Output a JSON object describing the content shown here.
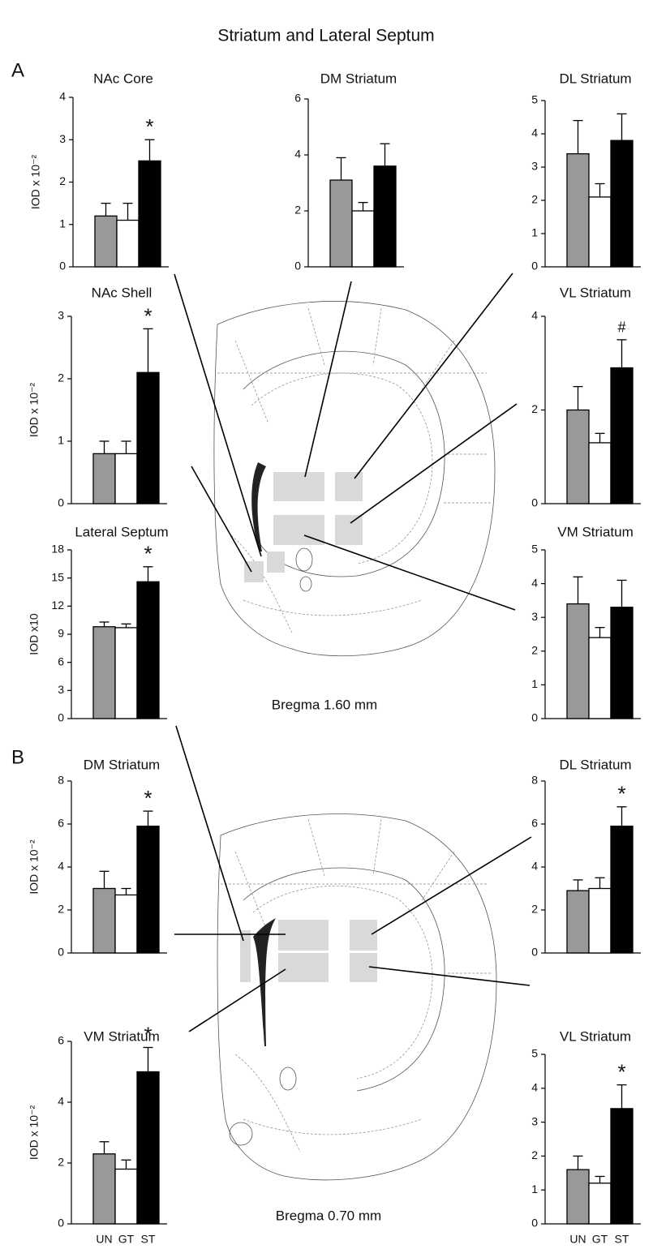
{
  "title": "Striatum and Lateral Septum",
  "panel_labels": [
    "A",
    "B"
  ],
  "annotations": [
    "Bregma 1.60 mm",
    "Bregma 0.70 mm"
  ],
  "chart_data": [
    {
      "type": "bar",
      "title": "NAc Core",
      "ylabel": "IOD x 10⁻²",
      "values": [
        1.2,
        1.1,
        2.5
      ],
      "errors": [
        0.3,
        0.4,
        0.5
      ],
      "colors": [
        "#999999",
        "#ffffff",
        "#000000"
      ],
      "ylim": [
        0,
        4
      ],
      "yticks": [
        0,
        1,
        2,
        3,
        4
      ],
      "markers": [
        null,
        null,
        "*"
      ]
    },
    {
      "type": "bar",
      "title": "DM Striatum",
      "values": [
        3.1,
        2.0,
        3.6
      ],
      "errors": [
        0.8,
        0.3,
        0.8
      ],
      "colors": [
        "#999999",
        "#ffffff",
        "#000000"
      ],
      "ylim": [
        0,
        6
      ],
      "yticks": [
        0,
        2,
        4,
        6
      ]
    },
    {
      "type": "bar",
      "title": "DL Striatum",
      "values": [
        3.4,
        2.1,
        3.8
      ],
      "errors": [
        1.0,
        0.4,
        0.8
      ],
      "colors": [
        "#999999",
        "#ffffff",
        "#000000"
      ],
      "ylim": [
        0,
        5
      ],
      "yticks": [
        0,
        1,
        2,
        3,
        4,
        5
      ]
    },
    {
      "type": "bar",
      "title": "NAc Shell",
      "ylabel": "IOD x 10⁻²",
      "values": [
        0.8,
        0.8,
        2.1
      ],
      "errors": [
        0.2,
        0.2,
        0.7
      ],
      "colors": [
        "#999999",
        "#ffffff",
        "#000000"
      ],
      "ylim": [
        0,
        3
      ],
      "yticks": [
        0,
        1,
        2,
        3
      ],
      "markers": [
        null,
        null,
        "*"
      ]
    },
    {
      "type": "bar",
      "title": "VL Striatum",
      "values": [
        2.0,
        1.3,
        2.9
      ],
      "errors": [
        0.5,
        0.2,
        0.6
      ],
      "colors": [
        "#999999",
        "#ffffff",
        "#000000"
      ],
      "ylim": [
        0,
        4
      ],
      "yticks": [
        0,
        2,
        4
      ],
      "markers": [
        null,
        null,
        "#"
      ]
    },
    {
      "type": "bar",
      "title": "Lateral Septum",
      "ylabel": "IOD x10",
      "values": [
        9.8,
        9.7,
        14.6
      ],
      "errors": [
        0.5,
        0.4,
        1.6
      ],
      "colors": [
        "#999999",
        "#ffffff",
        "#000000"
      ],
      "ylim": [
        0,
        18
      ],
      "yticks": [
        0,
        3,
        6,
        9,
        12,
        15,
        18
      ],
      "markers": [
        null,
        null,
        "*"
      ]
    },
    {
      "type": "bar",
      "title": "VM Striatum",
      "values": [
        3.4,
        2.4,
        3.3
      ],
      "errors": [
        0.8,
        0.3,
        0.8
      ],
      "colors": [
        "#999999",
        "#ffffff",
        "#000000"
      ],
      "ylim": [
        0,
        5
      ],
      "yticks": [
        0,
        1,
        2,
        3,
        4,
        5
      ]
    },
    {
      "type": "bar",
      "title": "DM Striatum",
      "ylabel": "IOD x 10⁻²",
      "values": [
        3.0,
        2.7,
        5.9
      ],
      "errors": [
        0.8,
        0.3,
        0.7
      ],
      "colors": [
        "#999999",
        "#ffffff",
        "#000000"
      ],
      "ylim": [
        0,
        8
      ],
      "yticks": [
        0,
        2,
        4,
        6,
        8
      ],
      "markers": [
        null,
        null,
        "*"
      ]
    },
    {
      "type": "bar",
      "title": "DL Striatum",
      "values": [
        2.9,
        3.0,
        5.9
      ],
      "errors": [
        0.5,
        0.5,
        0.9
      ],
      "colors": [
        "#999999",
        "#ffffff",
        "#000000"
      ],
      "ylim": [
        0,
        8
      ],
      "yticks": [
        0,
        2,
        4,
        6,
        8
      ],
      "markers": [
        null,
        null,
        "*"
      ]
    },
    {
      "type": "bar",
      "title": "VM Striatum",
      "ylabel": "IOD x 10⁻²",
      "categories": [
        "UN",
        "GT",
        "ST"
      ],
      "values": [
        2.3,
        1.8,
        5.0
      ],
      "errors": [
        0.4,
        0.3,
        0.8
      ],
      "colors": [
        "#999999",
        "#ffffff",
        "#000000"
      ],
      "ylim": [
        0,
        6
      ],
      "yticks": [
        0,
        2,
        4,
        6
      ],
      "markers": [
        null,
        null,
        "*"
      ]
    },
    {
      "type": "bar",
      "title": "VL Striatum",
      "categories": [
        "UN",
        "GT",
        "ST"
      ],
      "values": [
        1.6,
        1.2,
        3.4
      ],
      "errors": [
        0.4,
        0.2,
        0.7
      ],
      "colors": [
        "#999999",
        "#ffffff",
        "#000000"
      ],
      "ylim": [
        0,
        5
      ],
      "yticks": [
        0,
        1,
        2,
        3,
        4,
        5
      ],
      "markers": [
        null,
        null,
        "*"
      ]
    }
  ]
}
